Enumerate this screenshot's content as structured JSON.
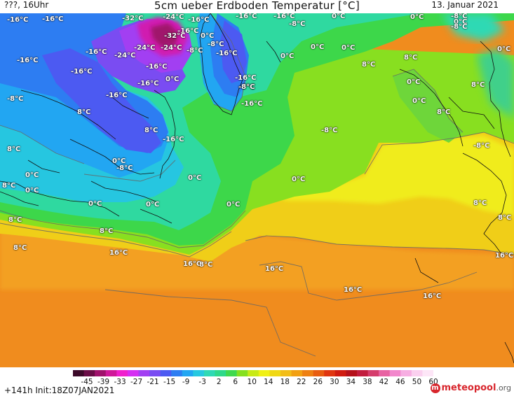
{
  "header": {
    "left": "???, 16Uhr",
    "title": "5cm ueber Erdboden Temperatur [°C]",
    "date": "13. Januar 2021"
  },
  "map_labels": [
    {
      "text": "-16°C"
    },
    {
      "text": "-32°C"
    },
    {
      "text": "-24°C"
    },
    {
      "text": "-16°C"
    },
    {
      "text": "-16°C"
    },
    {
      "text": "-16°C"
    },
    {
      "text": "0°C"
    },
    {
      "text": "-8°C"
    },
    {
      "text": "0°C"
    },
    {
      "text": "-16°C"
    },
    {
      "text": "-8°C"
    },
    {
      "text": "-16°C"
    },
    {
      "text": "-32°C"
    },
    {
      "text": "0°C"
    },
    {
      "text": "-8°C"
    },
    {
      "text": "0°C"
    },
    {
      "text": "-16°C"
    },
    {
      "text": "-24°C"
    },
    {
      "text": "-24°C"
    },
    {
      "text": "-24°C"
    },
    {
      "text": "-8°C"
    },
    {
      "text": "-16°C"
    },
    {
      "text": "0°C"
    },
    {
      "text": "0°C"
    },
    {
      "text": "0°C"
    },
    {
      "text": "8°C"
    },
    {
      "text": "0°C"
    },
    {
      "text": "-16°C"
    },
    {
      "text": "-16°C"
    },
    {
      "text": "-16°C"
    },
    {
      "text": "8°C"
    },
    {
      "text": "-8°C"
    },
    {
      "text": "-16°C"
    },
    {
      "text": "-16°C"
    },
    {
      "text": "0°C"
    },
    {
      "text": "-16°C"
    },
    {
      "text": "-8°C"
    },
    {
      "text": "0°C"
    },
    {
      "text": "8°C"
    },
    {
      "text": "-8°C"
    },
    {
      "text": "-16°C"
    },
    {
      "text": "0°C"
    },
    {
      "text": "8°C"
    },
    {
      "text": "8°C"
    },
    {
      "text": "-8°C"
    },
    {
      "text": "8°C"
    },
    {
      "text": "-16°C"
    },
    {
      "text": "-8°C"
    },
    {
      "text": "8°C"
    },
    {
      "text": "0°C"
    },
    {
      "text": "-8°C"
    },
    {
      "text": "0°C"
    },
    {
      "text": "0°C"
    },
    {
      "text": "0°C"
    },
    {
      "text": "8°C"
    },
    {
      "text": "0°C"
    },
    {
      "text": "0°C"
    },
    {
      "text": "0°C"
    },
    {
      "text": "0°C"
    },
    {
      "text": "8°C"
    },
    {
      "text": "8°C"
    },
    {
      "text": "8°C"
    },
    {
      "text": "8°C"
    },
    {
      "text": "8°C"
    },
    {
      "text": "16°C"
    },
    {
      "text": "16°C"
    },
    {
      "text": "8°C"
    },
    {
      "text": "16°C"
    },
    {
      "text": "16°C"
    },
    {
      "text": "16°C"
    },
    {
      "text": "16°C"
    },
    {
      "text": "16°C"
    }
  ],
  "colorbar": {
    "colors": [
      "#3b0a29",
      "#6a0d47",
      "#a0126c",
      "#d0189a",
      "#f01fcd",
      "#d52df2",
      "#a23ff2",
      "#7a4cf2",
      "#4c5af2",
      "#2d7df2",
      "#22a6f2",
      "#26c8e0",
      "#2fd9b4",
      "#2fd98a",
      "#40d94e",
      "#85e01f",
      "#c8ea16",
      "#f0f014",
      "#f0d814",
      "#f2bd18",
      "#f2a012",
      "#ee8012",
      "#e85d10",
      "#e03610",
      "#d01b10",
      "#b5101a",
      "#c21c3e",
      "#d53d6c",
      "#e862a2",
      "#f287cc",
      "#f7aee2",
      "#fbd0ef",
      "#fde6f7"
    ],
    "ticks": [
      "-45",
      "-39",
      "-33",
      "-27",
      "-21",
      "-15",
      "-9",
      "-3",
      "2",
      "6",
      "10",
      "14",
      "18",
      "22",
      "26",
      "30",
      "34",
      "38",
      "42",
      "46",
      "50",
      "60"
    ]
  },
  "footer": {
    "run_info": "+141h  Init:18Z07JAN2021",
    "brand_main": "meteopool",
    "brand_domain": ".org"
  }
}
